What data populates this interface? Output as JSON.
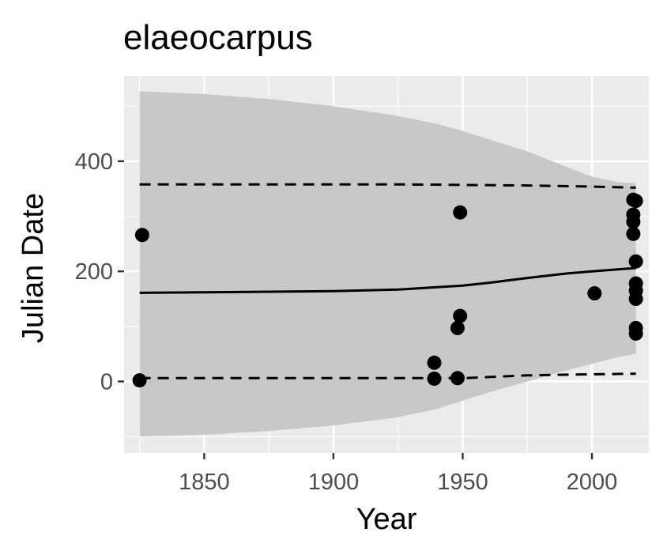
{
  "chart_data": {
    "type": "scatter",
    "title": "elaeocarpus",
    "xlabel": "Year",
    "ylabel": "Julian Date",
    "xlim": [
      1819,
      2022
    ],
    "ylim": [
      -130,
      555
    ],
    "x_ticks": [
      1850,
      1900,
      1950,
      2000
    ],
    "x_tick_labels": [
      "1850",
      "1900",
      "1950",
      "2000"
    ],
    "y_ticks": [
      0,
      200,
      400
    ],
    "y_tick_labels": [
      "0",
      "200",
      "400"
    ],
    "grid": true,
    "legend": "none",
    "colors": {
      "panel": "#ebebeb",
      "grid": "#ffffff",
      "ribbon": "#c8c8c8",
      "line": "#000000",
      "points": "#000000"
    },
    "points": {
      "x": [
        1826,
        1825,
        1939,
        1939,
        1948,
        1948,
        1949,
        1949,
        2001,
        2016,
        2016,
        2016,
        2016,
        2017,
        2017,
        2017,
        2017,
        2017,
        2017,
        2017
      ],
      "y": [
        266,
        2,
        34,
        5,
        6,
        97,
        119,
        307,
        160,
        268,
        290,
        303,
        330,
        218,
        178,
        165,
        150,
        97,
        87,
        328
      ]
    },
    "fit": {
      "x": [
        1825,
        1850,
        1875,
        1900,
        1925,
        1950,
        1960,
        1975,
        1990,
        2000,
        2017
      ],
      "y": [
        161,
        162,
        163,
        164,
        167,
        174,
        179,
        188,
        196,
        200,
        206
      ]
    },
    "upper_dashed": {
      "x": [
        1825,
        1850,
        1875,
        1900,
        1925,
        1950,
        1975,
        2000,
        2017
      ],
      "y": [
        358,
        358,
        358,
        358,
        358,
        357,
        356,
        354,
        352
      ]
    },
    "lower_dashed": {
      "x": [
        1825,
        1850,
        1875,
        1900,
        1925,
        1950,
        1960,
        1975,
        2000,
        2017
      ],
      "y": [
        6,
        6,
        6,
        6,
        6,
        6,
        8,
        11,
        13,
        14
      ]
    },
    "ribbon": {
      "x": [
        1825,
        1850,
        1875,
        1900,
        1925,
        1940,
        1950,
        1960,
        1975,
        1990,
        2000,
        2010,
        2017
      ],
      "upper": [
        527,
        522,
        513,
        500,
        482,
        468,
        455,
        440,
        418,
        390,
        372,
        362,
        360
      ],
      "lower": [
        -100,
        -97,
        -90,
        -80,
        -65,
        -50,
        -35,
        -20,
        0,
        20,
        32,
        44,
        50
      ]
    }
  }
}
